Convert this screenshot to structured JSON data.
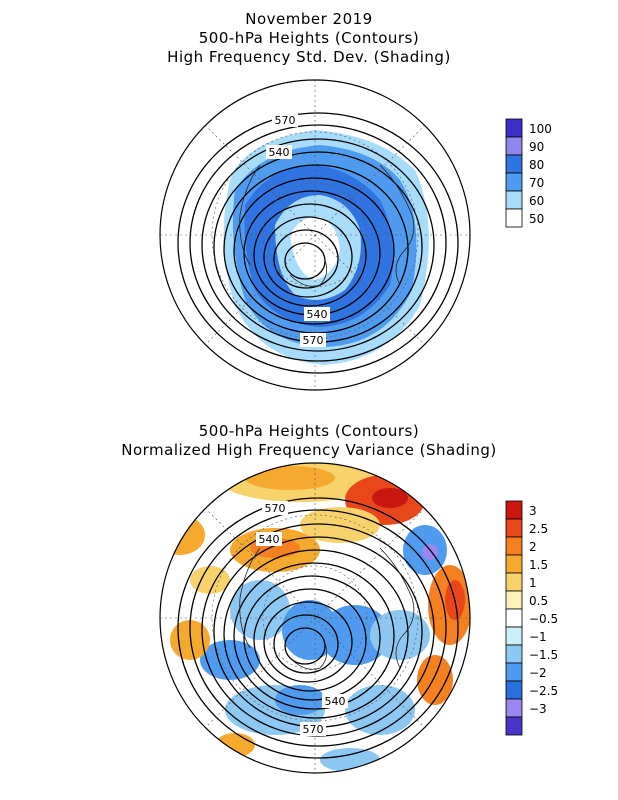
{
  "panel1": {
    "title_lines": [
      "November 2019",
      "500-hPa Heights (Contours)",
      "High Frequency Std. Dev. (Shading)"
    ],
    "contour_labels": [
      "570",
      "540",
      "540",
      "570"
    ],
    "colorbar": {
      "labels": [
        "100",
        "90",
        "80",
        "70",
        "60",
        "50"
      ],
      "colors": [
        "#3b2fc8",
        "#8f86ee",
        "#2f74e0",
        "#4f9bef",
        "#a8dcfb",
        "#ffffff"
      ]
    }
  },
  "panel2": {
    "title_lines": [
      "500-hPa Heights (Contours)",
      "Normalized High Frequency Variance (Shading)"
    ],
    "contour_labels": [
      "570",
      "540",
      "540",
      "570"
    ],
    "colorbar": {
      "labels": [
        "3",
        "2.5",
        "2",
        "1.5",
        "1",
        "0.5",
        "−0.5",
        "−1",
        "−1.5",
        "−2",
        "−2.5",
        "−3"
      ],
      "colors": [
        "#c8170f",
        "#e8471a",
        "#f5801f",
        "#f5a92f",
        "#f8d26a",
        "#fdf1b8",
        "#ffffff",
        "#c9f0fb",
        "#8dc8f3",
        "#4f9bef",
        "#2a6fdb",
        "#9a86ee",
        "#4a35c9"
      ]
    }
  }
}
